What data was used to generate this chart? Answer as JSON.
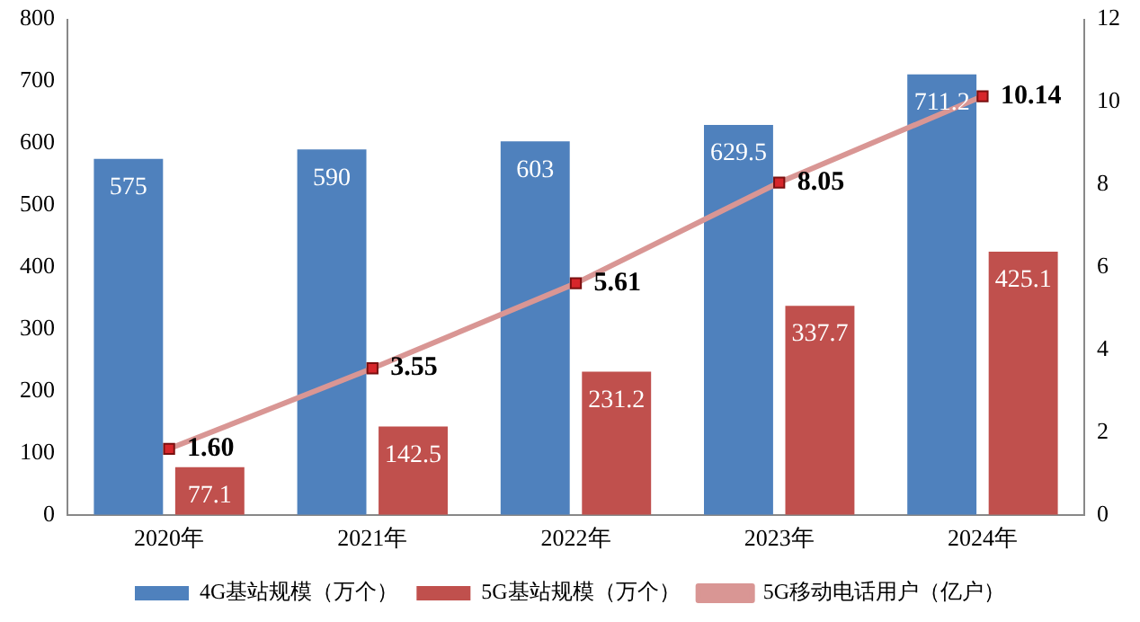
{
  "chart_data": {
    "type": "bar",
    "categories": [
      "2020年",
      "2021年",
      "2022年",
      "2023年",
      "2024年"
    ],
    "series": [
      {
        "name": "4G基站规模（万个）",
        "color": "#4f81bd",
        "values": [
          575,
          590,
          603,
          629.5,
          711.2
        ],
        "value_labels": [
          "575",
          "590",
          "603",
          "629.5",
          "711.2"
        ]
      },
      {
        "name": "5G基站规模（万个）",
        "color": "#c0504d",
        "values": [
          77.1,
          142.5,
          231.2,
          337.7,
          425.1
        ],
        "value_labels": [
          "77.1",
          "142.5",
          "231.2",
          "337.7",
          "425.1"
        ]
      },
      {
        "name": "5G移动电话用户（亿户）",
        "type": "line",
        "axis": "y2",
        "color": "#d99694",
        "marker": "square",
        "values": [
          1.6,
          3.55,
          5.61,
          8.05,
          10.14
        ],
        "value_labels": [
          "1.60",
          "3.55",
          "5.61",
          "8.05",
          "10.14"
        ]
      }
    ],
    "ylim": [
      0,
      800
    ],
    "yticks": [
      0,
      100,
      200,
      300,
      400,
      500,
      600,
      700,
      800
    ],
    "y2lim": [
      0,
      12
    ],
    "y2ticks": [
      0,
      2,
      4,
      6,
      8,
      10,
      12
    ],
    "grid": false,
    "legend": "bottom"
  }
}
